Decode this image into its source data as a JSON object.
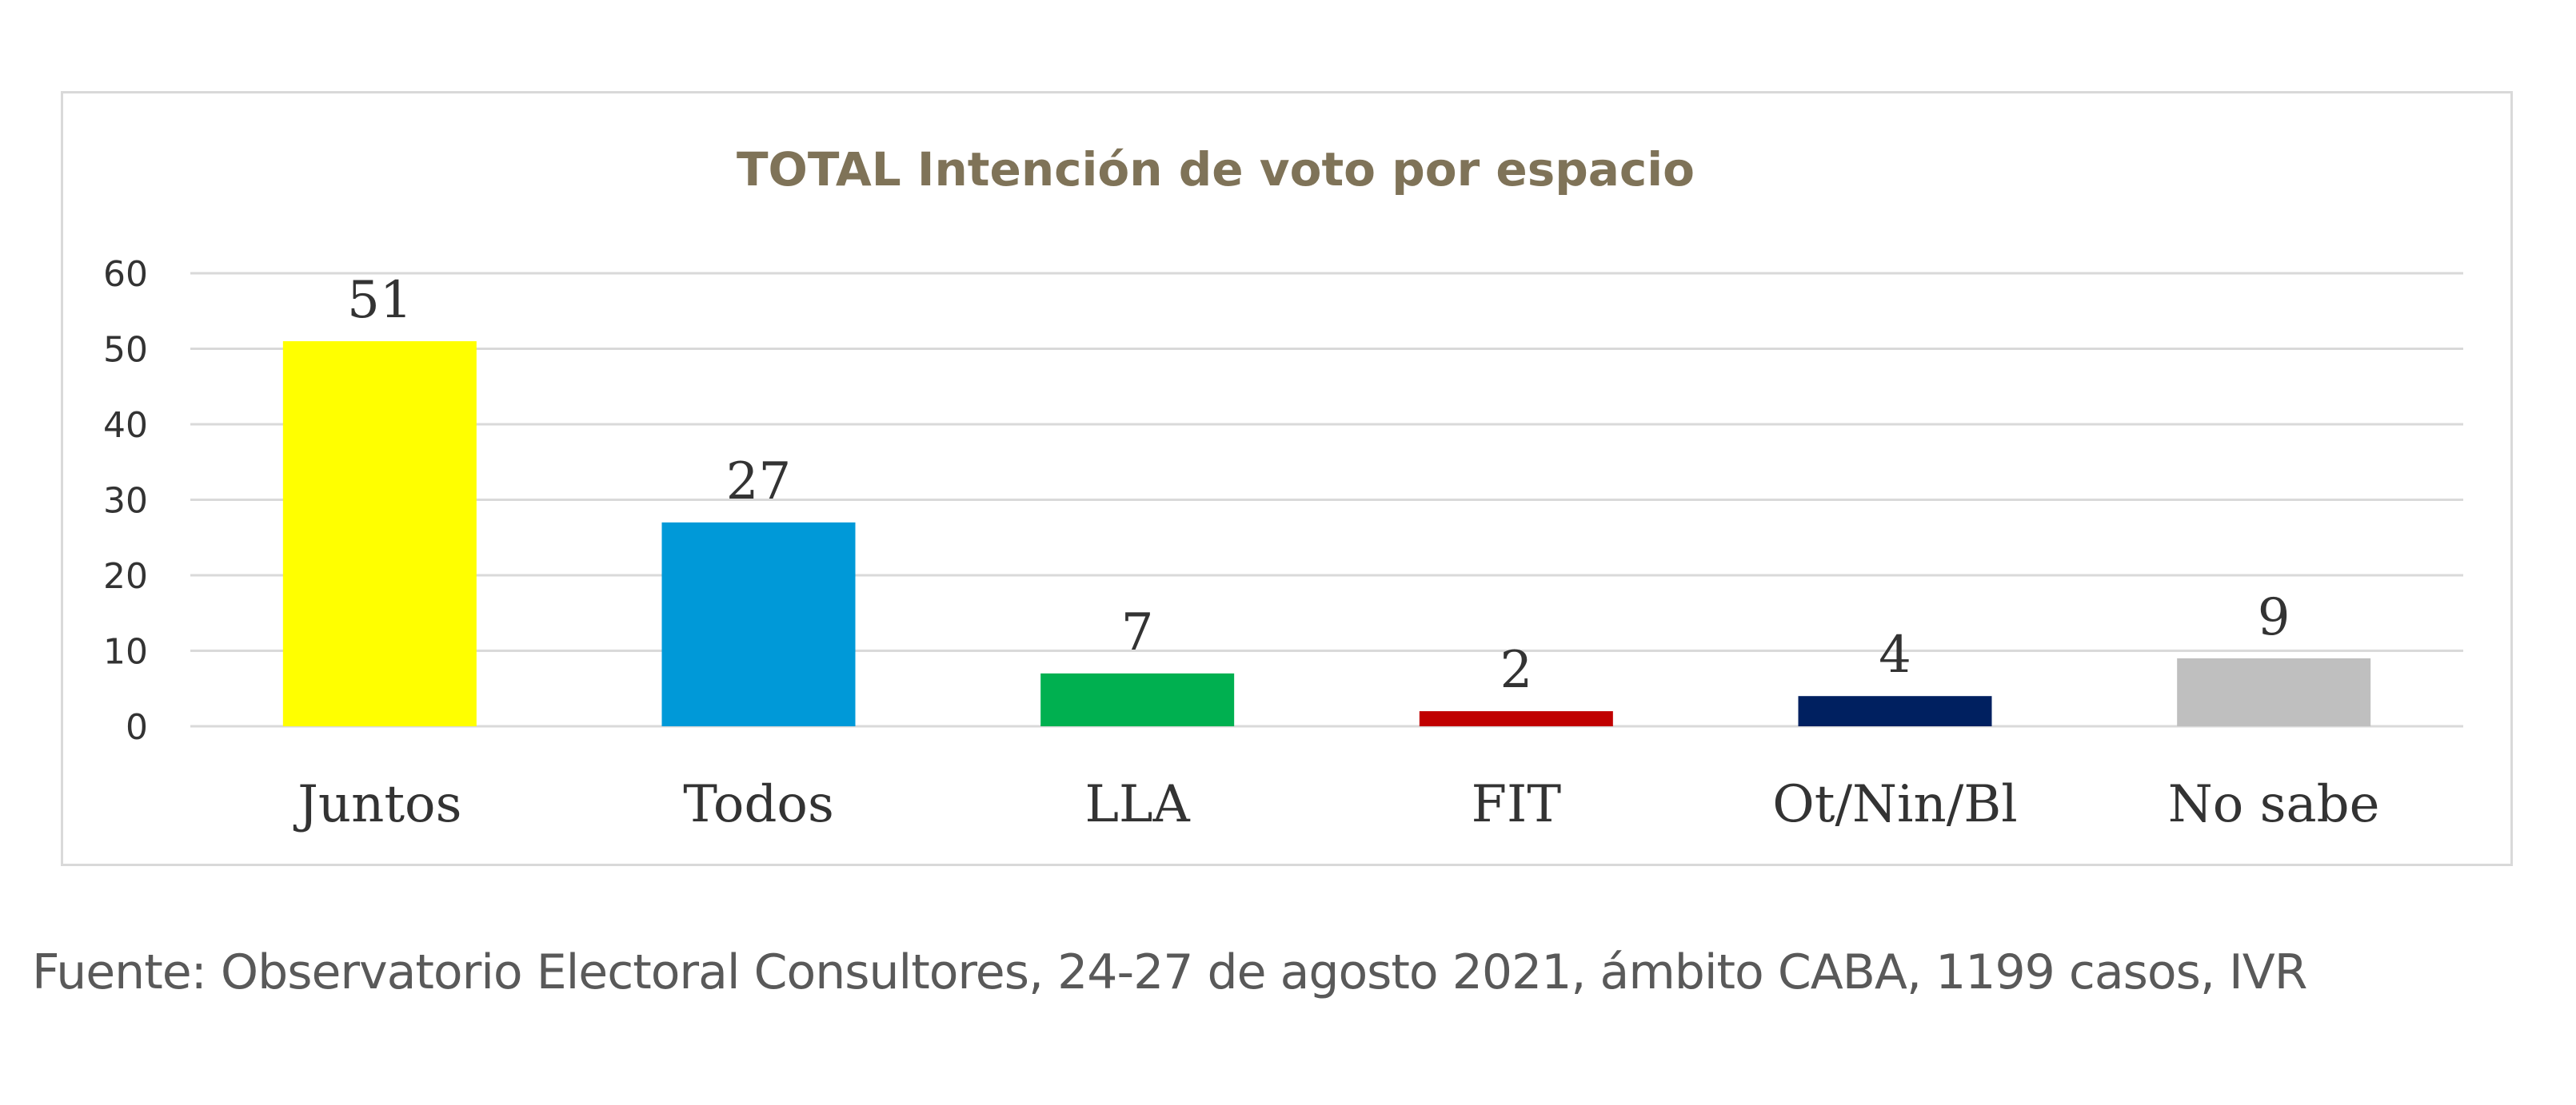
{
  "chart_data": {
    "type": "bar",
    "title": "TOTAL Intención de voto por espacio",
    "categories": [
      "Juntos",
      "Todos",
      "LLA",
      "FIT",
      "Ot/Nin/Bl",
      "No sabe"
    ],
    "values": [
      51,
      27,
      7,
      2,
      4,
      9
    ],
    "colors": [
      "#ffff00",
      "#0099d8",
      "#00b050",
      "#c00000",
      "#002060",
      "#bfbfbf"
    ],
    "data_labels": [
      "51",
      "27",
      "7",
      "2",
      "4",
      "9"
    ],
    "ylim": [
      0,
      60
    ],
    "yticks": [
      0,
      10,
      20,
      30,
      40,
      50,
      60
    ],
    "xlabel": "",
    "ylabel": "",
    "grid": true,
    "legend": "none"
  },
  "footer": {
    "source": "Fuente: Observatorio Electoral Consultores, 24-27 de agosto 2021, ámbito CABA, 1199 casos, IVR"
  }
}
